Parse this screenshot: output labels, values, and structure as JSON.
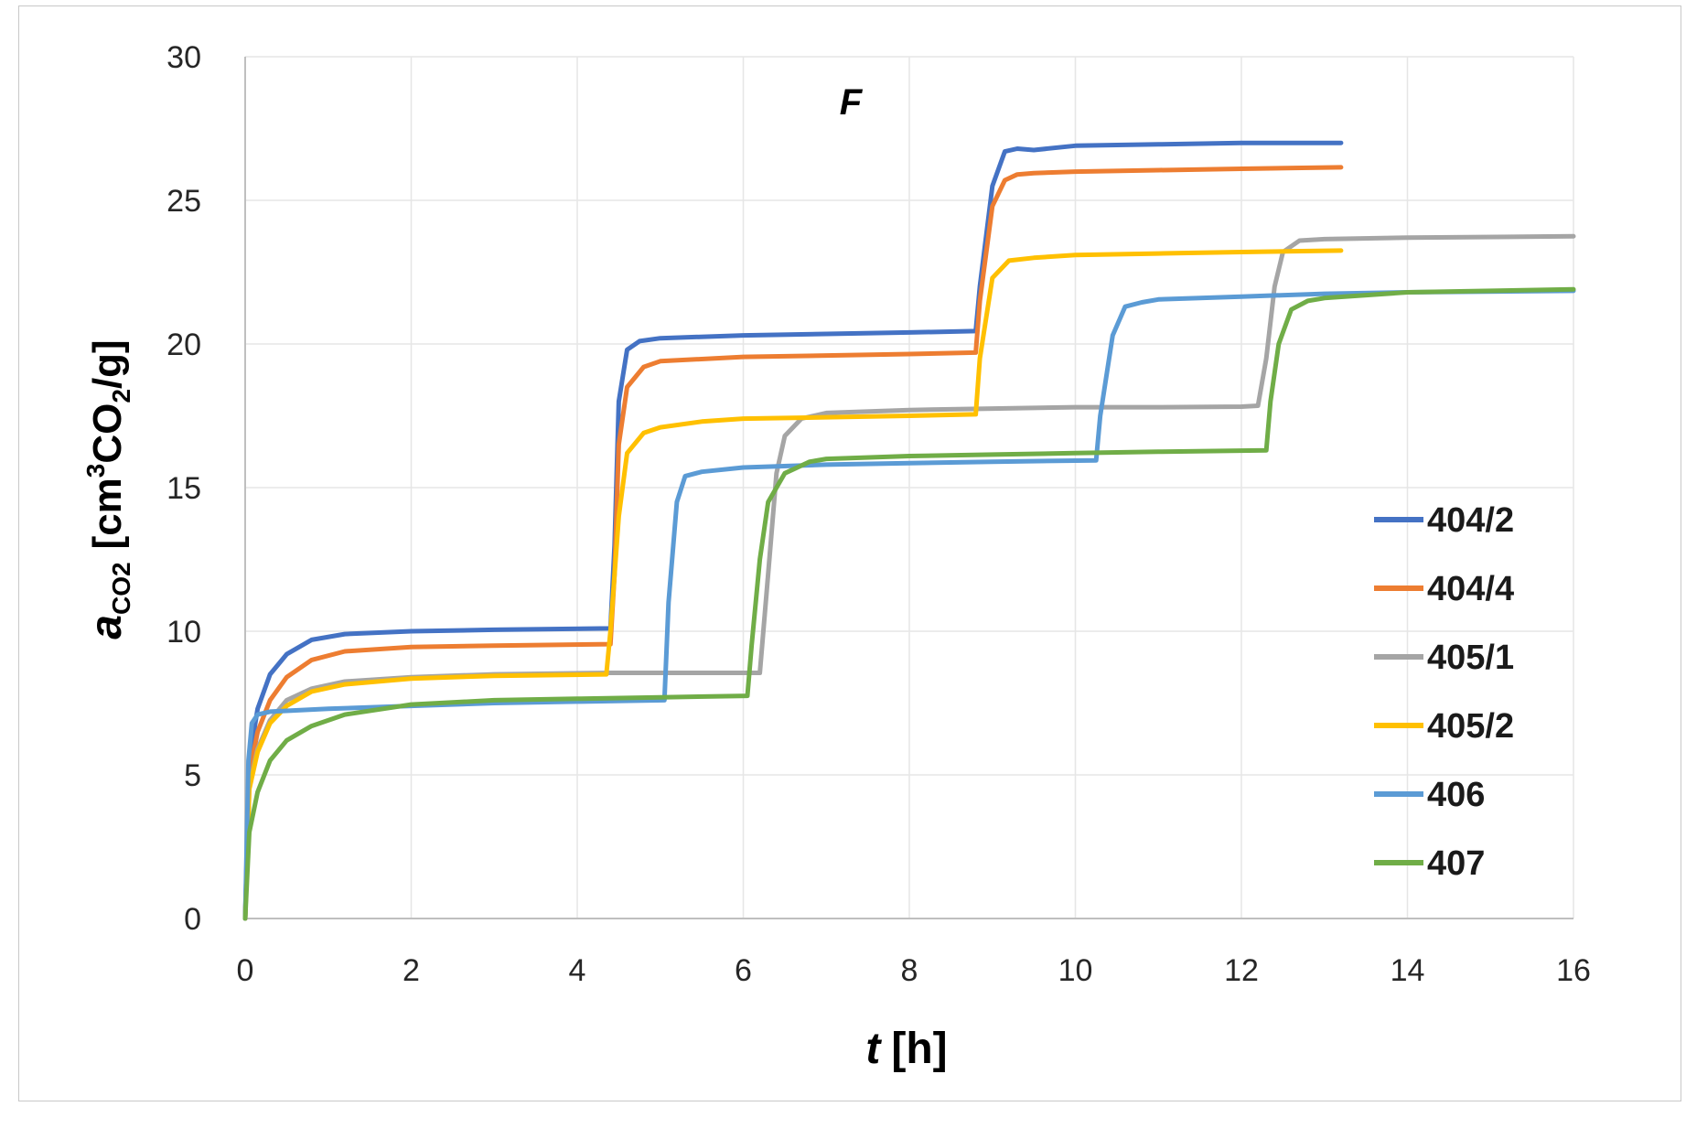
{
  "chart_data": {
    "type": "line",
    "title": "F",
    "xlabel": {
      "var": "t",
      "unit": "[h]"
    },
    "ylabel": {
      "var": "a",
      "sub": "CO2",
      "unit_prefix": "[cm",
      "sup": "3",
      "unit_mid": "CO",
      "sub2": "2",
      "unit_suffix": "/g]"
    },
    "xlim": [
      0,
      16
    ],
    "ylim": [
      0,
      30
    ],
    "xticks": [
      0,
      2,
      4,
      6,
      8,
      10,
      12,
      14,
      16
    ],
    "yticks": [
      0,
      5,
      10,
      15,
      20,
      25,
      30
    ],
    "grid": true,
    "legend_position": "right",
    "series": [
      {
        "name": "404/2",
        "color": "#4472c4",
        "x": [
          0,
          0.05,
          0.15,
          0.3,
          0.5,
          0.8,
          1.2,
          2,
          3,
          4.4,
          4.45,
          4.5,
          4.6,
          4.75,
          5,
          6,
          7,
          8,
          8.8,
          8.85,
          9,
          9.15,
          9.3,
          9.5,
          10,
          11,
          12,
          13.2
        ],
        "y": [
          0,
          5.5,
          7.3,
          8.5,
          9.2,
          9.7,
          9.9,
          10.0,
          10.05,
          10.1,
          13,
          18,
          19.8,
          20.1,
          20.2,
          20.3,
          20.35,
          20.4,
          20.45,
          22,
          25.5,
          26.7,
          26.8,
          26.75,
          26.9,
          26.95,
          27.0,
          27.0
        ]
      },
      {
        "name": "404/4",
        "color": "#ed7d31",
        "x": [
          0,
          0.05,
          0.15,
          0.3,
          0.5,
          0.8,
          1.2,
          2,
          3,
          4.4,
          4.45,
          4.5,
          4.6,
          4.8,
          5,
          6,
          7,
          8,
          8.8,
          8.85,
          9,
          9.15,
          9.3,
          9.5,
          10,
          11,
          12,
          13.2
        ],
        "y": [
          0,
          5.0,
          6.5,
          7.6,
          8.4,
          9.0,
          9.3,
          9.45,
          9.5,
          9.55,
          12,
          16.5,
          18.5,
          19.2,
          19.4,
          19.55,
          19.6,
          19.65,
          19.7,
          21.5,
          24.8,
          25.7,
          25.9,
          25.95,
          26.0,
          26.05,
          26.1,
          26.15
        ]
      },
      {
        "name": "405/1",
        "color": "#a5a5a5",
        "x": [
          0,
          0.05,
          0.15,
          0.3,
          0.5,
          0.8,
          1.2,
          2,
          3,
          4.4,
          5,
          6,
          6.2,
          6.3,
          6.4,
          6.5,
          6.7,
          7,
          8,
          9,
          10,
          11,
          12,
          12.2,
          12.3,
          12.4,
          12.5,
          12.7,
          13,
          14,
          16
        ],
        "y": [
          0,
          4.6,
          5.9,
          6.9,
          7.6,
          8.0,
          8.25,
          8.4,
          8.5,
          8.55,
          8.55,
          8.55,
          8.55,
          12,
          15.5,
          16.8,
          17.4,
          17.6,
          17.7,
          17.75,
          17.8,
          17.8,
          17.82,
          17.85,
          19.5,
          22,
          23.2,
          23.6,
          23.65,
          23.7,
          23.75
        ]
      },
      {
        "name": "405/2",
        "color": "#ffc000",
        "x": [
          0,
          0.05,
          0.15,
          0.3,
          0.5,
          0.8,
          1.2,
          2,
          3,
          4.35,
          4.4,
          4.5,
          4.6,
          4.8,
          5,
          5.5,
          6,
          7,
          8,
          8.8,
          8.85,
          9,
          9.2,
          9.5,
          10,
          11,
          12,
          13.2
        ],
        "y": [
          0,
          4.5,
          5.8,
          6.8,
          7.4,
          7.9,
          8.15,
          8.35,
          8.45,
          8.5,
          10,
          14,
          16.2,
          16.9,
          17.1,
          17.3,
          17.4,
          17.45,
          17.5,
          17.55,
          19.5,
          22.3,
          22.9,
          23.0,
          23.1,
          23.15,
          23.2,
          23.25
        ]
      },
      {
        "name": "406",
        "color": "#5b9bd5",
        "x": [
          0,
          0.04,
          0.08,
          0.15,
          0.3,
          1,
          2,
          3,
          4,
          5.05,
          5.1,
          5.2,
          5.3,
          5.5,
          6,
          7,
          8,
          9,
          10.25,
          10.3,
          10.45,
          10.6,
          10.8,
          11,
          12,
          13,
          14,
          16
        ],
        "y": [
          0,
          5.5,
          6.8,
          7.1,
          7.2,
          7.3,
          7.4,
          7.5,
          7.55,
          7.6,
          11,
          14.5,
          15.4,
          15.55,
          15.7,
          15.8,
          15.85,
          15.9,
          15.95,
          17.5,
          20.3,
          21.3,
          21.45,
          21.55,
          21.65,
          21.75,
          21.8,
          21.85
        ]
      },
      {
        "name": "407",
        "color": "#70ad47",
        "x": [
          0,
          0.05,
          0.15,
          0.3,
          0.5,
          0.8,
          1.2,
          2,
          3,
          4,
          5,
          6.05,
          6.1,
          6.2,
          6.3,
          6.5,
          6.8,
          7,
          8,
          9,
          10,
          11,
          12.3,
          12.35,
          12.45,
          12.6,
          12.8,
          13,
          14,
          16
        ],
        "y": [
          0,
          3.0,
          4.4,
          5.5,
          6.2,
          6.7,
          7.1,
          7.45,
          7.6,
          7.65,
          7.7,
          7.75,
          9.5,
          12.5,
          14.5,
          15.5,
          15.9,
          16.0,
          16.1,
          16.15,
          16.2,
          16.25,
          16.3,
          18,
          20,
          21.2,
          21.5,
          21.6,
          21.8,
          21.9
        ]
      }
    ]
  }
}
